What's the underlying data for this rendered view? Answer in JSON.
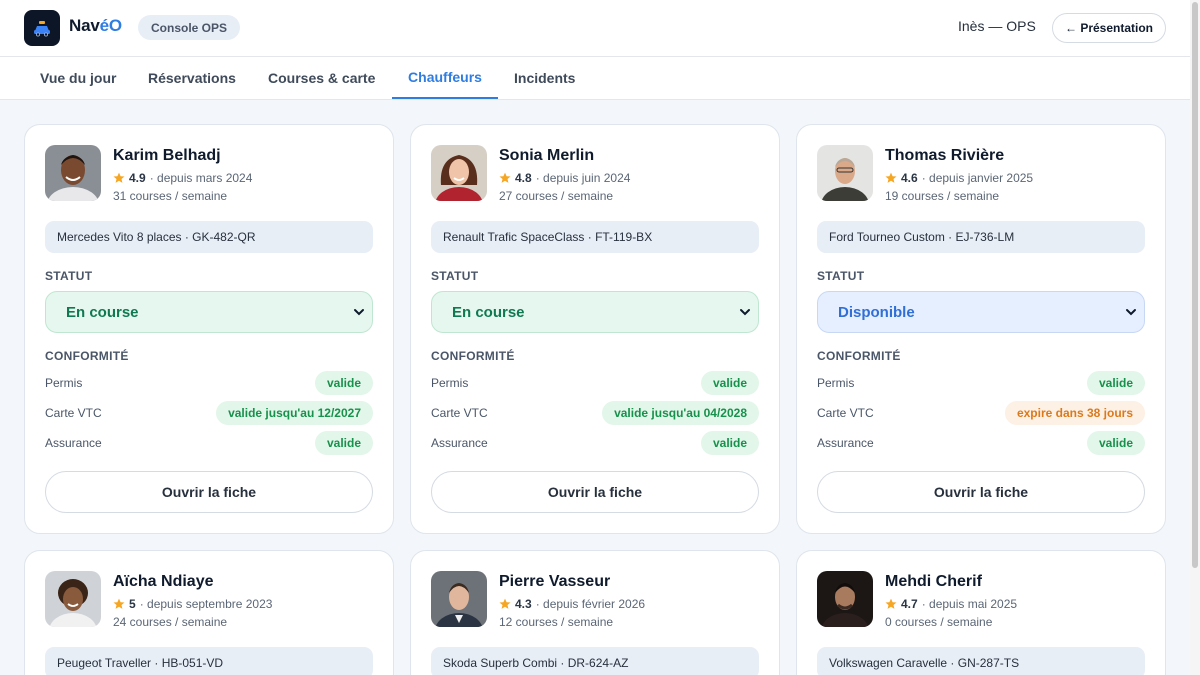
{
  "app": {
    "brand_prefix": "Nav",
    "brand_accent": "éO",
    "console_label": "Console OPS",
    "user_label": "Inès — OPS",
    "presentation_label": "← Présentation"
  },
  "nav": {
    "tabs": [
      {
        "label": "Vue du jour"
      },
      {
        "label": "Réservations"
      },
      {
        "label": "Courses & carte"
      },
      {
        "label": "Chauffeurs"
      },
      {
        "label": "Incidents"
      }
    ],
    "active": "Chauffeurs"
  },
  "labels": {
    "statut": "STATUT",
    "conformite": "CONFORMITÉ",
    "permis": "Permis",
    "carte_vtc": "Carte VTC",
    "assurance": "Assurance",
    "open_button": "Ouvrir la fiche"
  },
  "colors": {
    "accent": "#2f7de1",
    "status_green": "#0f7a52",
    "status_blue": "#2f6fd6",
    "valid": "#17914c",
    "warning": "#db7a1c",
    "star": "#f5a623"
  },
  "drivers": [
    {
      "name": "Karim Belhadj",
      "rating": "4.9",
      "since": "· depuis mars 2024",
      "weekly": "31 courses / semaine",
      "vehicle": "Mercedes Vito 8 places · GK-482-QR",
      "status": "En course",
      "permis": "valide",
      "vtc": "valide jusqu'au 12/2027",
      "assurance": "valide"
    },
    {
      "name": "Sonia Merlin",
      "rating": "4.8",
      "since": "· depuis juin 2024",
      "weekly": "27 courses / semaine",
      "vehicle": "Renault Trafic SpaceClass · FT-119-BX",
      "status": "En course",
      "permis": "valide",
      "vtc": "valide jusqu'au 04/2028",
      "assurance": "valide"
    },
    {
      "name": "Thomas Rivière",
      "rating": "4.6",
      "since": "· depuis janvier 2025",
      "weekly": "19 courses / semaine",
      "vehicle": "Ford Tourneo Custom · EJ-736-LM",
      "status": "Disponible",
      "permis": "valide",
      "vtc": "expire dans 38 jours",
      "assurance": "valide"
    },
    {
      "name": "Aïcha Ndiaye",
      "rating": "5",
      "since": "· depuis septembre 2023",
      "weekly": "24 courses / semaine",
      "vehicle": "Peugeot Traveller · HB-051-VD"
    },
    {
      "name": "Pierre Vasseur",
      "rating": "4.3",
      "since": "· depuis février 2026",
      "weekly": "12 courses / semaine",
      "vehicle": "Skoda Superb Combi · DR-624-AZ"
    },
    {
      "name": "Mehdi Cherif",
      "rating": "4.7",
      "since": "· depuis mai 2025",
      "weekly": "0 courses / semaine",
      "vehicle": "Volkswagen Caravelle · GN-287-TS"
    }
  ]
}
